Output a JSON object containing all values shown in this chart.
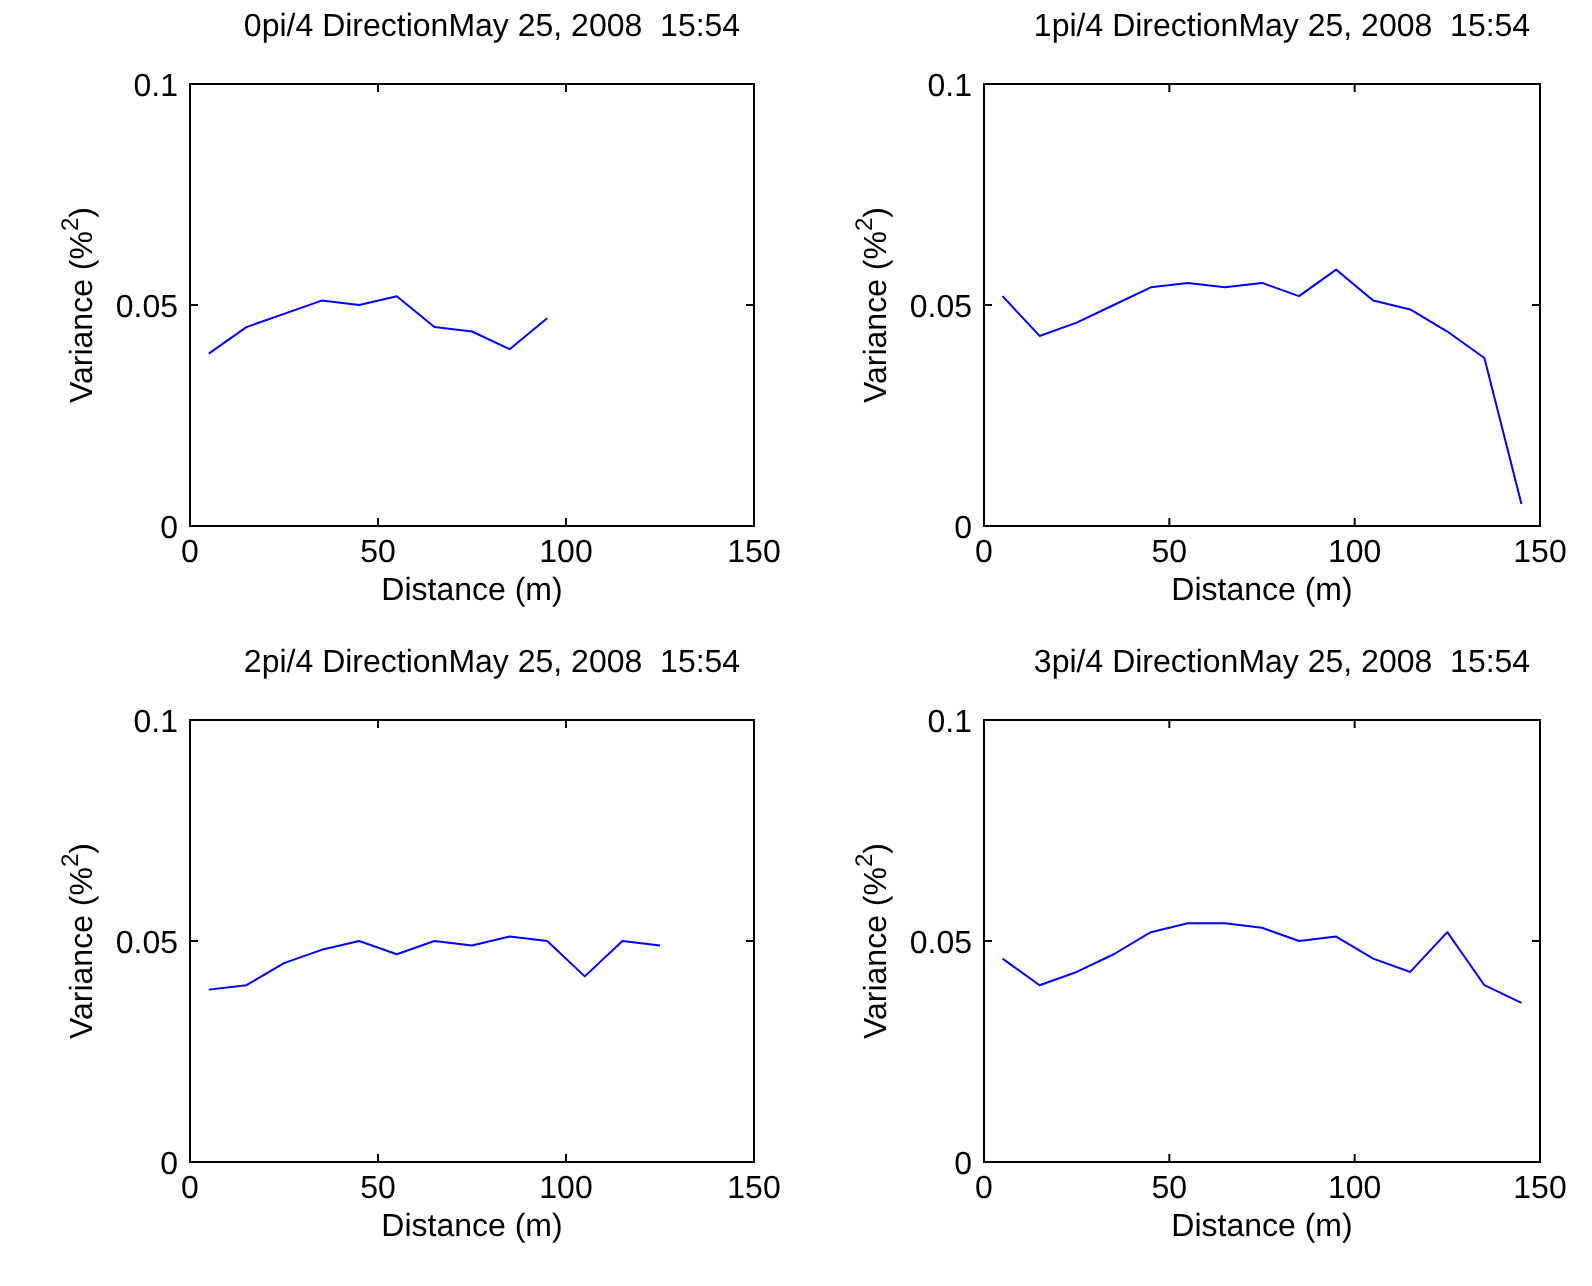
{
  "chart_data": [
    {
      "type": "line",
      "title": "0pi/4 DirectionMay 25, 2008  15:54",
      "xlabel": "Distance (m)",
      "ylabel": "Variance (%$^{2}$)",
      "x": [
        5,
        15,
        25,
        35,
        45,
        55,
        65,
        75,
        85,
        95
      ],
      "series": [
        {
          "color": "#0000ff",
          "values": [
            0.039,
            0.045,
            0.048,
            0.051,
            0.05,
            0.052,
            0.045,
            0.044,
            0.04,
            0.047
          ]
        }
      ],
      "xlim": [
        0,
        150
      ],
      "xticks": [
        0,
        50,
        100,
        150
      ],
      "ylim": [
        0,
        0.1
      ],
      "yticks": [
        0,
        0.05,
        0.1
      ]
    },
    {
      "type": "line",
      "title": "1pi/4 DirectionMay 25, 2008  15:54",
      "xlabel": "Distance (m)",
      "ylabel": "Variance (%$^{2}$)",
      "x": [
        5,
        15,
        25,
        35,
        45,
        55,
        65,
        75,
        85,
        95,
        105,
        115,
        125,
        135,
        145
      ],
      "series": [
        {
          "color": "#0000ff",
          "values": [
            0.052,
            0.043,
            0.046,
            0.05,
            0.054,
            0.055,
            0.054,
            0.055,
            0.052,
            0.058,
            0.051,
            0.049,
            0.044,
            0.038,
            0.005
          ]
        }
      ],
      "xlim": [
        0,
        150
      ],
      "xticks": [
        0,
        50,
        100,
        150
      ],
      "ylim": [
        0,
        0.1
      ],
      "yticks": [
        0,
        0.05,
        0.1
      ]
    },
    {
      "type": "line",
      "title": "2pi/4 DirectionMay 25, 2008  15:54",
      "xlabel": "Distance (m)",
      "ylabel": "Variance (%$^{2}$)",
      "x": [
        5,
        15,
        25,
        35,
        45,
        55,
        65,
        75,
        85,
        95,
        105,
        115,
        125
      ],
      "series": [
        {
          "color": "#0000ff",
          "values": [
            0.039,
            0.04,
            0.045,
            0.048,
            0.05,
            0.047,
            0.05,
            0.049,
            0.051,
            0.05,
            0.042,
            0.05,
            0.049
          ]
        }
      ],
      "xlim": [
        0,
        150
      ],
      "xticks": [
        0,
        50,
        100,
        150
      ],
      "ylim": [
        0,
        0.1
      ],
      "yticks": [
        0,
        0.05,
        0.1
      ]
    },
    {
      "type": "line",
      "title": "3pi/4 DirectionMay 25, 2008  15:54",
      "xlabel": "Distance (m)",
      "ylabel": "Variance (%$^{2}$)",
      "x": [
        5,
        15,
        25,
        35,
        45,
        55,
        65,
        75,
        85,
        95,
        105,
        115,
        125,
        135,
        145
      ],
      "series": [
        {
          "color": "#0000ff",
          "values": [
            0.046,
            0.04,
            0.043,
            0.047,
            0.052,
            0.054,
            0.054,
            0.053,
            0.05,
            0.051,
            0.046,
            0.043,
            0.052,
            0.04,
            0.036
          ]
        }
      ],
      "xlim": [
        0,
        150
      ],
      "xticks": [
        0,
        50,
        100,
        150
      ],
      "ylim": [
        0,
        0.1
      ],
      "yticks": [
        0,
        0.05,
        0.1
      ]
    }
  ]
}
